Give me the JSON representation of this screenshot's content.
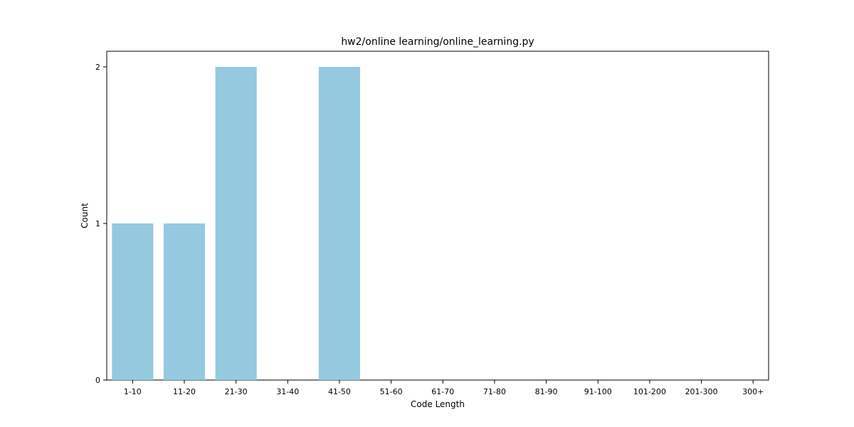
{
  "chart_data": {
    "type": "bar",
    "title": "hw2/online learning/online_learning.py",
    "xlabel": "Code Length",
    "ylabel": "Count",
    "categories": [
      "1-10",
      "11-20",
      "21-30",
      "31-40",
      "41-50",
      "51-60",
      "61-70",
      "71-80",
      "81-90",
      "91-100",
      "101-200",
      "201-300",
      "300+"
    ],
    "values": [
      1,
      1,
      2,
      0,
      2,
      0,
      0,
      0,
      0,
      0,
      0,
      0,
      0
    ],
    "ylim": [
      0,
      2.1
    ],
    "yticks": [
      "0",
      "1",
      "2"
    ],
    "grid": false,
    "legend": "none",
    "bar_color": "#95c9df",
    "axis_color": "#000000"
  }
}
